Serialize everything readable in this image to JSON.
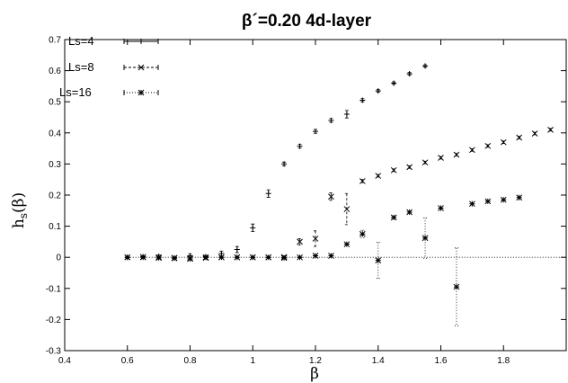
{
  "chart_data": {
    "type": "scatter",
    "title": "β´=0.20 4d-layer",
    "xlabel": "β",
    "ylabel_main": "h",
    "ylabel_sub": "s",
    "ylabel_tail": "(β)",
    "xlim": [
      0.4,
      2.0
    ],
    "ylim": [
      -0.3,
      0.7
    ],
    "xticks": [
      0.4,
      0.6,
      0.8,
      1.0,
      1.2,
      1.4,
      1.6,
      1.8
    ],
    "xtick_labels": [
      "0.4",
      "0.6",
      "0.8",
      "1",
      "1.2",
      "1.4",
      "1.6",
      "1.8"
    ],
    "yticks": [
      -0.3,
      -0.2,
      -0.1,
      0,
      0.1,
      0.2,
      0.3,
      0.4,
      0.5,
      0.6,
      0.7
    ],
    "ytick_labels": [
      "-0.3",
      "-0.2",
      "-0.1",
      "0",
      "0.1",
      "0.2",
      "0.3",
      "0.4",
      "0.5",
      "0.6",
      "0.7"
    ],
    "grid": false,
    "legend_position": "top-left",
    "zero_line": true,
    "series": [
      {
        "name": "Ls=4",
        "marker": "plus",
        "x": [
          0.6,
          0.65,
          0.7,
          0.75,
          0.8,
          0.85,
          0.9,
          0.95,
          1.0,
          1.05,
          1.1,
          1.15,
          1.2,
          1.25,
          1.3,
          1.35,
          1.4,
          1.45,
          1.5,
          1.55
        ],
        "y": [
          0.0,
          0.002,
          0.003,
          -0.002,
          0.005,
          0.002,
          0.012,
          0.025,
          0.095,
          0.205,
          0.3,
          0.357,
          0.405,
          0.44,
          0.46,
          0.505,
          0.535,
          0.56,
          0.59,
          0.615
        ],
        "err": [
          0.003,
          0.003,
          0.004,
          0.003,
          0.006,
          0.004,
          0.008,
          0.01,
          0.012,
          0.012,
          0.006,
          0.006,
          0.006,
          0.006,
          0.012,
          0.005,
          0.004,
          0.004,
          0.004,
          0.004
        ]
      },
      {
        "name": "Ls=8",
        "marker": "cross",
        "x": [
          0.6,
          0.65,
          0.7,
          0.75,
          0.8,
          0.85,
          0.9,
          0.95,
          1.0,
          1.05,
          1.1,
          1.15,
          1.2,
          1.25,
          1.3,
          1.35,
          1.4,
          1.45,
          1.5,
          1.55,
          1.6,
          1.65,
          1.7,
          1.75,
          1.8,
          1.85,
          1.9,
          1.95
        ],
        "y": [
          0.0,
          0.001,
          0.0,
          -0.002,
          -0.003,
          -0.002,
          0.0,
          0.0,
          0.0,
          0.0,
          0.001,
          0.05,
          0.06,
          0.195,
          0.155,
          0.245,
          0.262,
          0.28,
          0.29,
          0.305,
          0.32,
          0.33,
          0.345,
          0.358,
          0.37,
          0.385,
          0.398,
          0.41
        ],
        "err": [
          0.002,
          0.002,
          0.002,
          0.002,
          0.004,
          0.002,
          0.002,
          0.002,
          0.002,
          0.002,
          0.003,
          0.01,
          0.025,
          0.012,
          0.05,
          0.005,
          0.004,
          0.004,
          0.004,
          0.004,
          0.004,
          0.004,
          0.004,
          0.004,
          0.004,
          0.004,
          0.004,
          0.004
        ]
      },
      {
        "name": "Ls=16",
        "marker": "star",
        "x": [
          0.6,
          0.65,
          0.7,
          0.75,
          0.8,
          0.85,
          0.9,
          0.95,
          1.0,
          1.05,
          1.1,
          1.15,
          1.2,
          1.25,
          1.3,
          1.35,
          1.4,
          1.45,
          1.5,
          1.55,
          1.6,
          1.65,
          1.7,
          1.75,
          1.8,
          1.85
        ],
        "y": [
          0.0,
          0.0,
          -0.002,
          -0.003,
          -0.005,
          0.0,
          0.0,
          0.0,
          0.0,
          0.0,
          -0.002,
          0.0,
          0.005,
          0.005,
          0.042,
          0.075,
          -0.01,
          0.128,
          0.145,
          0.062,
          0.158,
          -0.095,
          0.172,
          0.18,
          0.185,
          0.192
        ],
        "err": [
          0.002,
          0.002,
          0.002,
          0.002,
          0.004,
          0.002,
          0.002,
          0.002,
          0.002,
          0.002,
          0.002,
          0.002,
          0.004,
          0.004,
          0.004,
          0.012,
          0.058,
          0.004,
          0.004,
          0.065,
          0.004,
          0.125,
          0.004,
          0.004,
          0.004,
          0.004
        ]
      }
    ]
  }
}
